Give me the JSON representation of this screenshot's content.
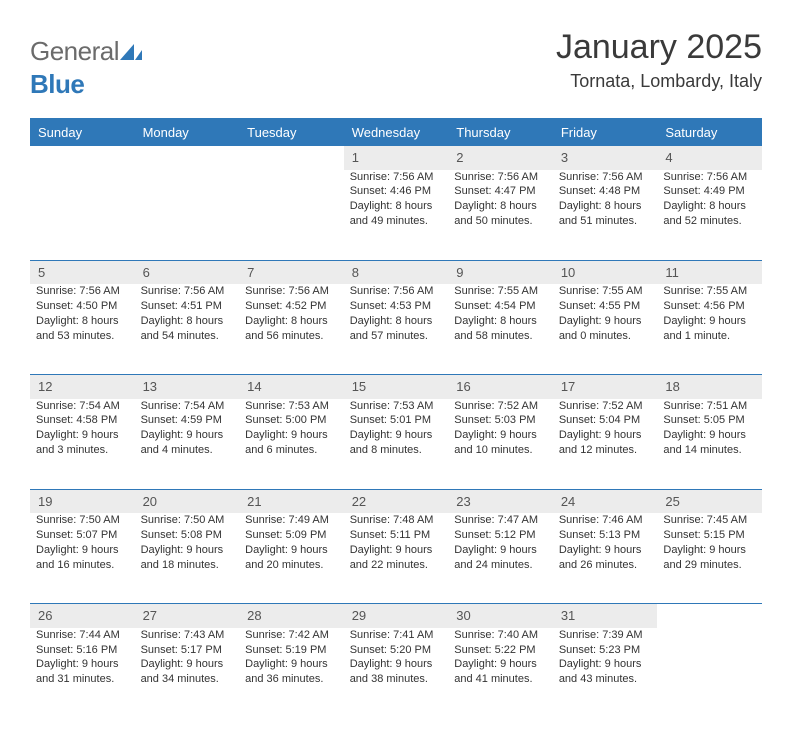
{
  "brand": {
    "general": "General",
    "blue": "Blue"
  },
  "title": "January 2025",
  "location": "Tornata, Lombardy, Italy",
  "colors": {
    "brand_blue": "#2f78b8",
    "header_bg": "#2f78b8",
    "header_text": "#ffffff",
    "daynum_bg": "#ececec",
    "text": "#333333",
    "logo_gray": "#6b6b6b"
  },
  "weekdays": [
    "Sunday",
    "Monday",
    "Tuesday",
    "Wednesday",
    "Thursday",
    "Friday",
    "Saturday"
  ],
  "weeks": [
    [
      null,
      null,
      null,
      {
        "n": "1",
        "sr": "7:56 AM",
        "ss": "4:46 PM",
        "dh": "8",
        "dm": "49"
      },
      {
        "n": "2",
        "sr": "7:56 AM",
        "ss": "4:47 PM",
        "dh": "8",
        "dm": "50"
      },
      {
        "n": "3",
        "sr": "7:56 AM",
        "ss": "4:48 PM",
        "dh": "8",
        "dm": "51"
      },
      {
        "n": "4",
        "sr": "7:56 AM",
        "ss": "4:49 PM",
        "dh": "8",
        "dm": "52"
      }
    ],
    [
      {
        "n": "5",
        "sr": "7:56 AM",
        "ss": "4:50 PM",
        "dh": "8",
        "dm": "53"
      },
      {
        "n": "6",
        "sr": "7:56 AM",
        "ss": "4:51 PM",
        "dh": "8",
        "dm": "54"
      },
      {
        "n": "7",
        "sr": "7:56 AM",
        "ss": "4:52 PM",
        "dh": "8",
        "dm": "56"
      },
      {
        "n": "8",
        "sr": "7:56 AM",
        "ss": "4:53 PM",
        "dh": "8",
        "dm": "57"
      },
      {
        "n": "9",
        "sr": "7:55 AM",
        "ss": "4:54 PM",
        "dh": "8",
        "dm": "58"
      },
      {
        "n": "10",
        "sr": "7:55 AM",
        "ss": "4:55 PM",
        "dh": "9",
        "dm": "0"
      },
      {
        "n": "11",
        "sr": "7:55 AM",
        "ss": "4:56 PM",
        "dh": "9",
        "dm": "1"
      }
    ],
    [
      {
        "n": "12",
        "sr": "7:54 AM",
        "ss": "4:58 PM",
        "dh": "9",
        "dm": "3"
      },
      {
        "n": "13",
        "sr": "7:54 AM",
        "ss": "4:59 PM",
        "dh": "9",
        "dm": "4"
      },
      {
        "n": "14",
        "sr": "7:53 AM",
        "ss": "5:00 PM",
        "dh": "9",
        "dm": "6"
      },
      {
        "n": "15",
        "sr": "7:53 AM",
        "ss": "5:01 PM",
        "dh": "9",
        "dm": "8"
      },
      {
        "n": "16",
        "sr": "7:52 AM",
        "ss": "5:03 PM",
        "dh": "9",
        "dm": "10"
      },
      {
        "n": "17",
        "sr": "7:52 AM",
        "ss": "5:04 PM",
        "dh": "9",
        "dm": "12"
      },
      {
        "n": "18",
        "sr": "7:51 AM",
        "ss": "5:05 PM",
        "dh": "9",
        "dm": "14"
      }
    ],
    [
      {
        "n": "19",
        "sr": "7:50 AM",
        "ss": "5:07 PM",
        "dh": "9",
        "dm": "16"
      },
      {
        "n": "20",
        "sr": "7:50 AM",
        "ss": "5:08 PM",
        "dh": "9",
        "dm": "18"
      },
      {
        "n": "21",
        "sr": "7:49 AM",
        "ss": "5:09 PM",
        "dh": "9",
        "dm": "20"
      },
      {
        "n": "22",
        "sr": "7:48 AM",
        "ss": "5:11 PM",
        "dh": "9",
        "dm": "22"
      },
      {
        "n": "23",
        "sr": "7:47 AM",
        "ss": "5:12 PM",
        "dh": "9",
        "dm": "24"
      },
      {
        "n": "24",
        "sr": "7:46 AM",
        "ss": "5:13 PM",
        "dh": "9",
        "dm": "26"
      },
      {
        "n": "25",
        "sr": "7:45 AM",
        "ss": "5:15 PM",
        "dh": "9",
        "dm": "29"
      }
    ],
    [
      {
        "n": "26",
        "sr": "7:44 AM",
        "ss": "5:16 PM",
        "dh": "9",
        "dm": "31"
      },
      {
        "n": "27",
        "sr": "7:43 AM",
        "ss": "5:17 PM",
        "dh": "9",
        "dm": "34"
      },
      {
        "n": "28",
        "sr": "7:42 AM",
        "ss": "5:19 PM",
        "dh": "9",
        "dm": "36"
      },
      {
        "n": "29",
        "sr": "7:41 AM",
        "ss": "5:20 PM",
        "dh": "9",
        "dm": "38"
      },
      {
        "n": "30",
        "sr": "7:40 AM",
        "ss": "5:22 PM",
        "dh": "9",
        "dm": "41"
      },
      {
        "n": "31",
        "sr": "7:39 AM",
        "ss": "5:23 PM",
        "dh": "9",
        "dm": "43"
      },
      null
    ]
  ],
  "labels": {
    "sunrise": "Sunrise:",
    "sunset": "Sunset:",
    "daylight": "Daylight:",
    "hours": "hours",
    "and": "and",
    "minute": "minute.",
    "minutes": "minutes."
  }
}
